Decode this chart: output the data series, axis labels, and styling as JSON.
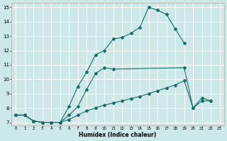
{
  "xlabel": "Humidex (Indice chaleur)",
  "xlim": [
    -0.5,
    23.5
  ],
  "ylim": [
    6.8,
    15.3
  ],
  "xticks": [
    0,
    1,
    2,
    3,
    4,
    5,
    6,
    7,
    8,
    9,
    10,
    11,
    12,
    13,
    14,
    15,
    16,
    17,
    18,
    19,
    20,
    21,
    22,
    23
  ],
  "yticks": [
    7,
    8,
    9,
    10,
    11,
    12,
    13,
    14,
    15
  ],
  "bg_color": "#cce8e8",
  "grid_color": "#ffffff",
  "line_color": "#1a6b6b",
  "line1_x": [
    0,
    1,
    2,
    3,
    4,
    5,
    6,
    7,
    8,
    9,
    10,
    11,
    12,
    13,
    14,
    15,
    16,
    17,
    18,
    19
  ],
  "line1_y": [
    7.5,
    7.5,
    7.1,
    7.0,
    7.0,
    7.0,
    8.1,
    9.5,
    10.5,
    11.7,
    12.0,
    12.8,
    12.9,
    13.2,
    13.6,
    15.0,
    14.8,
    14.5,
    13.5,
    12.5
  ],
  "line2_x": [
    0,
    1,
    2,
    3,
    4,
    5,
    6,
    7,
    8,
    9,
    10,
    11,
    19,
    20,
    21,
    22
  ],
  "line2_y": [
    7.5,
    7.5,
    7.1,
    7.0,
    7.0,
    7.0,
    7.5,
    8.1,
    9.3,
    10.4,
    10.8,
    10.7,
    10.8,
    8.0,
    8.7,
    8.5
  ],
  "line3_x": [
    0,
    1,
    2,
    3,
    4,
    5,
    6,
    7,
    8,
    9,
    10,
    11,
    12,
    13,
    14,
    15,
    16,
    17,
    18,
    19,
    20,
    21,
    22
  ],
  "line3_y": [
    7.5,
    7.5,
    7.1,
    7.0,
    7.0,
    7.0,
    7.2,
    7.5,
    7.8,
    8.0,
    8.2,
    8.35,
    8.5,
    8.65,
    8.8,
    9.0,
    9.2,
    9.4,
    9.6,
    9.9,
    8.0,
    8.5,
    8.5
  ]
}
